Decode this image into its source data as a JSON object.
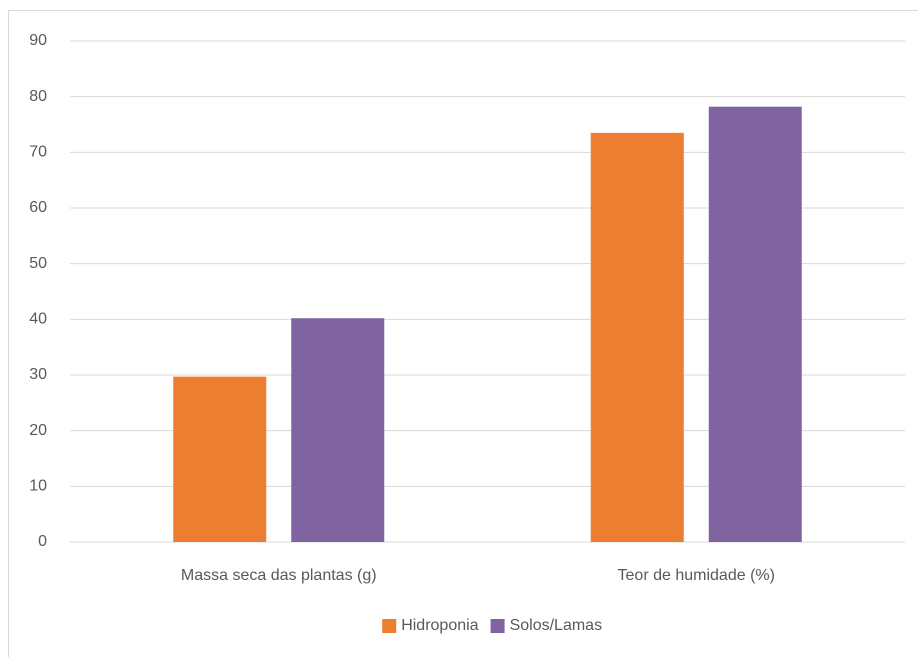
{
  "chart_data": {
    "type": "bar",
    "categories": [
      "Massa seca das plantas (g)",
      "Teor de humidade (%)"
    ],
    "series": [
      {
        "name": "Hidroponia",
        "color": "#ed7d31",
        "values": [
          29.7,
          73.5
        ]
      },
      {
        "name": "Solos/Lamas",
        "color": "#8064a2",
        "values": [
          40.2,
          78.2
        ]
      }
    ],
    "ylim": [
      0,
      90
    ],
    "yticks": [
      0,
      10,
      20,
      30,
      40,
      50,
      60,
      70,
      80,
      90
    ],
    "grid": true,
    "legend": "bottom"
  }
}
